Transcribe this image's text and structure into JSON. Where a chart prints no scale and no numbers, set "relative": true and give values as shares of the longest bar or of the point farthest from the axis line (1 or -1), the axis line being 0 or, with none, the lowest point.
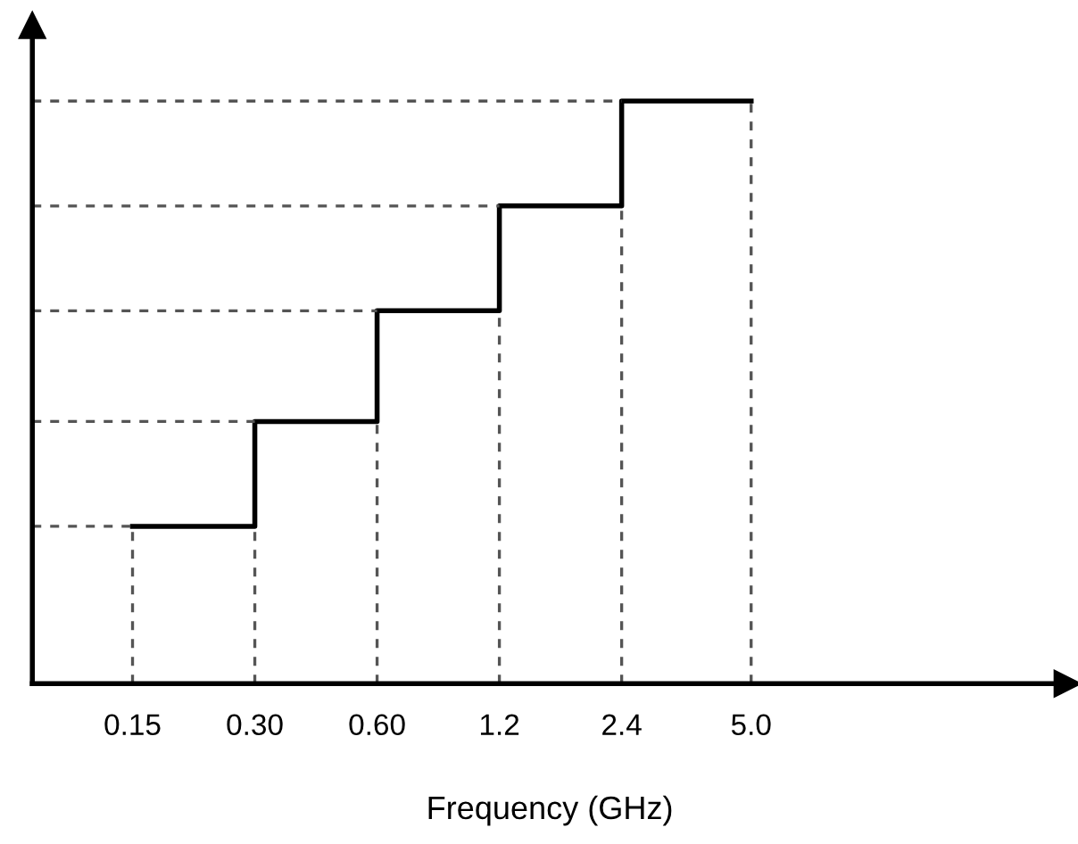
{
  "chart_data": {
    "type": "step",
    "xlabel": "Frequency (GHz)",
    "relative": true,
    "log": "x",
    "x": [
      0.15,
      0.3,
      0.6,
      1.2,
      2.4,
      5.0
    ],
    "series": [
      {
        "color": "#000000",
        "values": [
          0.27,
          0.45,
          0.64,
          0.82,
          1.0,
          1.0
        ]
      }
    ],
    "xlim": [
      0.085,
      30
    ],
    "xticks": [
      {
        "value": 0.15,
        "label": "0.15"
      },
      {
        "value": 0.3,
        "label": "0.30"
      },
      {
        "value": 0.6,
        "label": "0.60"
      },
      {
        "value": 1.2,
        "label": "1.2"
      },
      {
        "value": 2.4,
        "label": "2.4"
      },
      {
        "value": 5.0,
        "label": "5.0"
      }
    ],
    "ref_lines": [
      {
        "axis": "x",
        "value": 0.15,
        "color": "#555555",
        "line_style": "dashed"
      },
      {
        "axis": "x",
        "value": 0.3,
        "color": "#555555",
        "line_style": "dashed"
      },
      {
        "axis": "x",
        "value": 0.6,
        "color": "#555555",
        "line_style": "dashed"
      },
      {
        "axis": "x",
        "value": 1.2,
        "color": "#555555",
        "line_style": "dashed"
      },
      {
        "axis": "x",
        "value": 2.4,
        "color": "#555555",
        "line_style": "dashed"
      },
      {
        "axis": "x",
        "value": 5.0,
        "color": "#555555",
        "line_style": "dashed"
      },
      {
        "axis": "y",
        "value": 0.27,
        "color": "#555555",
        "line_style": "dashed"
      },
      {
        "axis": "y",
        "value": 0.45,
        "color": "#555555",
        "line_style": "dashed"
      },
      {
        "axis": "y",
        "value": 0.64,
        "color": "#555555",
        "line_style": "dashed"
      },
      {
        "axis": "y",
        "value": 0.82,
        "color": "#555555",
        "line_style": "dashed"
      },
      {
        "axis": "y",
        "value": 1.0,
        "color": "#555555",
        "line_style": "dashed"
      }
    ],
    "legend": false,
    "marker": "none",
    "line_style": "solid"
  }
}
